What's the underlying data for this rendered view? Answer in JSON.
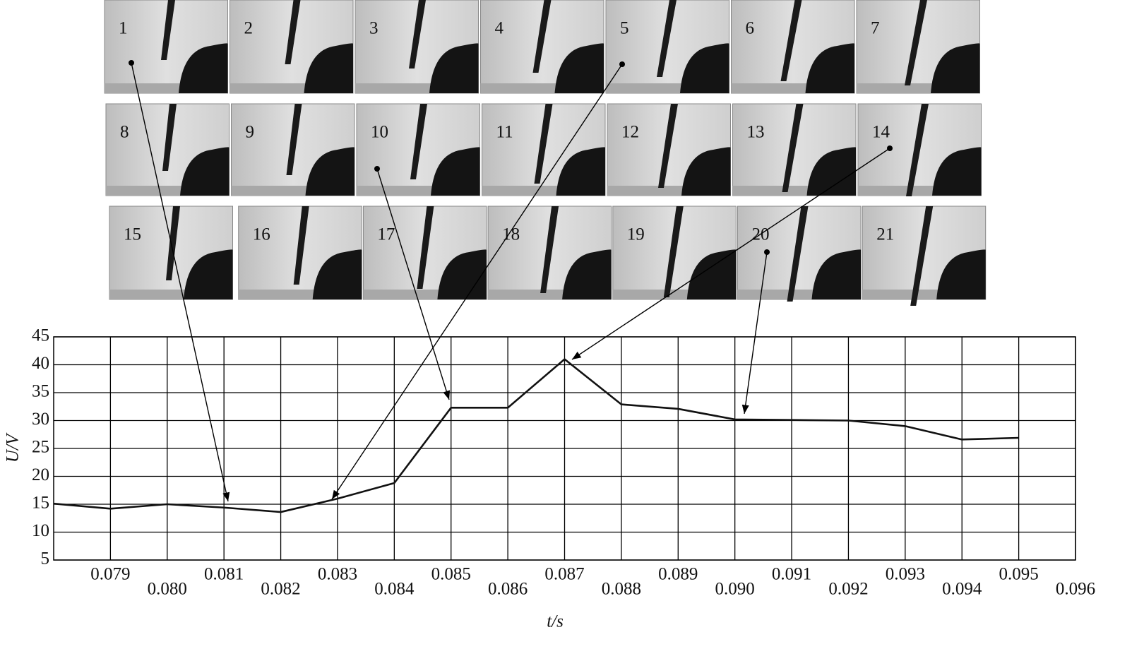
{
  "chart_data": {
    "type": "line",
    "frames": [
      "1",
      "2",
      "3",
      "4",
      "5",
      "6",
      "7",
      "8",
      "9",
      "10",
      "11",
      "12",
      "13",
      "14",
      "15",
      "16",
      "17",
      "18",
      "19",
      "20",
      "21"
    ],
    "x": [
      0.078,
      0.079,
      0.08,
      0.081,
      0.082,
      0.083,
      0.084,
      0.085,
      0.086,
      0.087,
      0.088,
      0.089,
      0.09,
      0.091,
      0.092,
      0.093,
      0.094,
      0.095
    ],
    "values": [
      15.1,
      14.2,
      15,
      14.4,
      13.6,
      16,
      18.8,
      32.3,
      32.3,
      41,
      32.9,
      32.1,
      30.2,
      30.1,
      30,
      29,
      26.6,
      26.9
    ],
    "color": "#111111",
    "xlabel": "t/s",
    "ylabel": "U/V",
    "xlim": [
      0.078,
      0.096
    ],
    "xticks": [
      0.079,
      {
        "value": 0.08,
        "label": "0.080"
      },
      0.081,
      0.082,
      0.083,
      0.084,
      0.085,
      0.086,
      0.087,
      0.088,
      0.089,
      {
        "value": 0.09,
        "label": "0.090"
      },
      0.091,
      0.092,
      0.093,
      0.094,
      0.095,
      0.096
    ],
    "ylim": [
      5,
      45
    ],
    "yticks": [
      5,
      10,
      15,
      20,
      25,
      30,
      35,
      40,
      45
    ],
    "grid": true
  }
}
